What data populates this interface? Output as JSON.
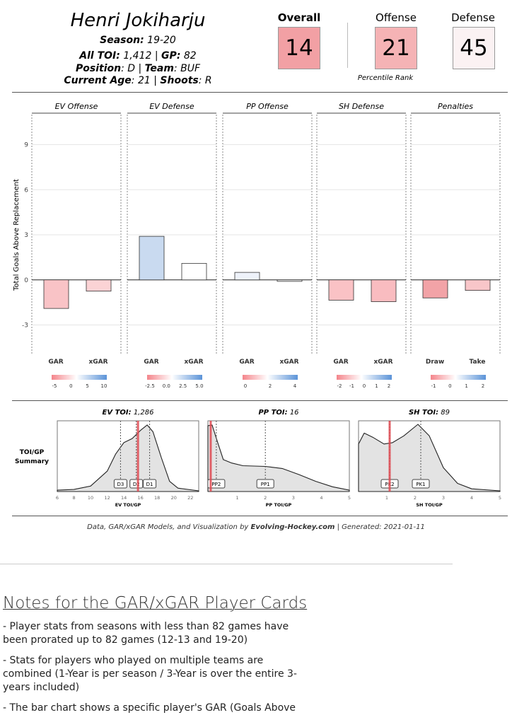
{
  "player": {
    "name": "Henri Jokiharju",
    "season_label": "Season",
    "season": "19-20",
    "toi_label": "All TOI",
    "toi": "1,412",
    "gp_label": "GP",
    "gp": "82",
    "position_label": "Position",
    "position": "D",
    "team_label": "Team",
    "team": "BUF",
    "age_label": "Current Age",
    "age": "21",
    "shoots_label": "Shoots",
    "shoots": "R"
  },
  "ranks": {
    "overall_label": "Overall",
    "overall": "14",
    "overall_color": "#f2a0a4",
    "offense_label": "Offense",
    "offense": "21",
    "offense_color": "#f5b3b5",
    "defense_label": "Defense",
    "defense": "45",
    "defense_color": "#fbf2f3",
    "caption": "Percentile Rank"
  },
  "chart_data": [
    {
      "type": "bar",
      "ylabel": "Total Goals Above Replacement",
      "ylim": [
        -5,
        11
      ],
      "yticks": [
        -3,
        0,
        3,
        6,
        9
      ],
      "panels": [
        {
          "title": "EV Offense",
          "categories": [
            "GAR",
            "xGAR"
          ],
          "values": [
            -1.9,
            -0.75
          ],
          "colors": [
            "#f9c3c6",
            "#fbd3d5"
          ],
          "scale_ticks": [
            "-5",
            "0",
            "5",
            "10"
          ]
        },
        {
          "title": "EV Defense",
          "categories": [
            "GAR",
            "xGAR"
          ],
          "values": [
            2.9,
            1.1
          ],
          "colors": [
            "#c9daf0",
            "#ffffff"
          ],
          "scale_ticks": [
            "-2.5",
            "0.0",
            "2.5",
            "5.0"
          ]
        },
        {
          "title": "PP Offense",
          "categories": [
            "GAR",
            "xGAR"
          ],
          "values": [
            0.5,
            -0.1
          ],
          "colors": [
            "#eef2fa",
            "#f3f3f3"
          ],
          "scale_ticks": [
            "0",
            "2",
            "4"
          ]
        },
        {
          "title": "SH Defense",
          "categories": [
            "GAR",
            "xGAR"
          ],
          "values": [
            -1.35,
            -1.45
          ],
          "colors": [
            "#fac2c5",
            "#f9bcc0"
          ],
          "scale_ticks": [
            "-2",
            "-1",
            "0",
            "1",
            "2"
          ]
        },
        {
          "title": "Penalties",
          "categories": [
            "Draw",
            "Take"
          ],
          "values": [
            -1.2,
            -0.7
          ],
          "colors": [
            "#f2a3a7",
            "#f8c6c9"
          ],
          "scale_ticks": [
            "-1",
            "0",
            "1",
            "2"
          ]
        }
      ]
    },
    {
      "type": "area",
      "row_label": [
        "TOI/GP",
        "Summary"
      ],
      "panels": [
        {
          "label": "EV TOI",
          "value": "1,286",
          "xlabel": "EV TOI/GP",
          "xlim": [
            6,
            23
          ],
          "xticks": [
            6,
            8,
            10,
            12,
            14,
            16,
            18,
            20,
            22
          ],
          "player_x": 15.7,
          "markers": [
            {
              "label": "D3",
              "x": 13.6
            },
            {
              "label": "D2",
              "x": 15.5
            },
            {
              "label": "D1",
              "x": 17.1
            }
          ]
        },
        {
          "label": "PP TOI",
          "value": "16",
          "xlabel": "PP TOI/GP",
          "xlim": [
            -0.05,
            5
          ],
          "xticks": [
            1,
            2,
            3,
            4,
            5
          ],
          "player_x": 0.05,
          "markers": [
            {
              "label": "PP2",
              "x": 0.25
            },
            {
              "label": "PP1",
              "x": 2.0
            }
          ]
        },
        {
          "label": "SH TOI",
          "value": "89",
          "xlabel": "SH TOI/GP",
          "xlim": [
            0,
            5
          ],
          "xticks": [
            1,
            2,
            3,
            4,
            5
          ],
          "player_x": 1.1,
          "markers": [
            {
              "label": "PK2",
              "x": 1.1
            },
            {
              "label": "PK1",
              "x": 2.2
            }
          ]
        }
      ]
    }
  ],
  "footer": {
    "prefix": "Data, GAR/xGAR Models, and Visualization by ",
    "brand": "Evolving-Hockey.com",
    "suffix": " | Generated: 2021-01-11"
  },
  "notes": {
    "heading": "Notes for the GAR/xGAR Player Cards",
    "items": [
      "- Player stats from seasons with less than 82 games have been prorated up to 82 games (12-13 and 19-20)",
      "- Stats for players who played on multiple teams are combined (1-Year is per season / 3-Year is over the entire 3-years included)",
      "- The bar chart shows a specific player's GAR (Goals Above"
    ]
  }
}
